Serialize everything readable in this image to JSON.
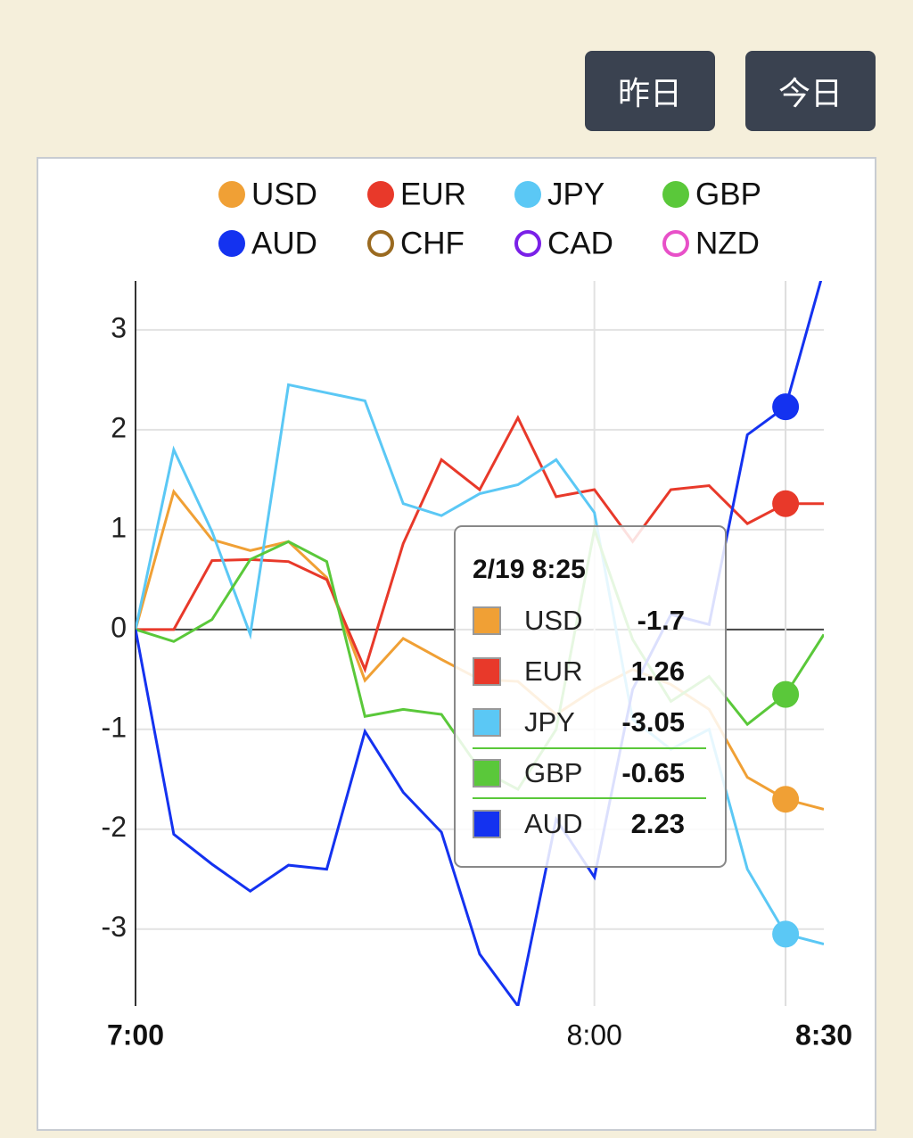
{
  "buttons": [
    "昨日",
    "今日"
  ],
  "chart_data": {
    "type": "line",
    "x": [
      0,
      5,
      10,
      15,
      20,
      25,
      30,
      35,
      40,
      45,
      50,
      55,
      60,
      65,
      70,
      75,
      80,
      85,
      90
    ],
    "xlim": [
      0,
      90
    ],
    "xticks": [
      {
        "value": 0,
        "label": "7:00"
      },
      {
        "value": 60,
        "label": "8:00"
      },
      {
        "value": 90,
        "label": "8:30"
      }
    ],
    "ylim": [
      -3.77,
      3.49
    ],
    "yticks": [
      -3,
      -2,
      -1,
      0,
      1,
      2,
      3
    ],
    "grid": true,
    "series": [
      {
        "name": "USD",
        "color": "#f0a035",
        "values": [
          0,
          1.38,
          0.9,
          0.79,
          0.88,
          0.52,
          -0.51,
          -0.09,
          -0.3,
          -0.5,
          -0.52,
          -0.85,
          -0.6,
          -0.4,
          -0.55,
          -0.8,
          -1.48,
          -1.7,
          -1.8
        ]
      },
      {
        "name": "EUR",
        "color": "#e8392a",
        "values": [
          0,
          0,
          0.69,
          0.7,
          0.68,
          0.5,
          -0.4,
          0.86,
          1.7,
          1.4,
          2.12,
          1.33,
          1.4,
          0.88,
          1.4,
          1.44,
          1.06,
          1.26,
          1.26
        ]
      },
      {
        "name": "JPY",
        "color": "#5bc8f5",
        "values": [
          0,
          1.8,
          0.98,
          -0.05,
          2.45,
          2.37,
          2.29,
          1.26,
          1.14,
          1.36,
          1.45,
          1.7,
          1.17,
          -0.9,
          -1.2,
          -1.0,
          -2.4,
          -3.05,
          -3.15
        ]
      },
      {
        "name": "GBP",
        "color": "#5ac83a",
        "values": [
          0,
          -0.12,
          0.1,
          0.7,
          0.88,
          0.68,
          -0.87,
          -0.8,
          -0.85,
          -1.4,
          -1.6,
          -1.0,
          1.0,
          -0.1,
          -0.72,
          -0.47,
          -0.95,
          -0.65,
          -0.05
        ]
      },
      {
        "name": "AUD",
        "color": "#1432f0",
        "values": [
          0,
          -2.05,
          -2.35,
          -2.62,
          -2.36,
          -2.4,
          -1.02,
          -1.63,
          -2.03,
          -3.25,
          -3.77,
          -1.9,
          -2.48,
          -0.6,
          0.15,
          0.05,
          1.95,
          2.23,
          3.6
        ]
      },
      {
        "name": "CHF",
        "color": "#9a6a20",
        "hidden": true
      },
      {
        "name": "CAD",
        "color": "#7a20e8",
        "hidden": true
      },
      {
        "name": "NZD",
        "color": "#e850c8",
        "hidden": true
      }
    ],
    "tooltip": {
      "title": "2/19 8:25",
      "index": 17,
      "highlight": "GBP"
    }
  }
}
